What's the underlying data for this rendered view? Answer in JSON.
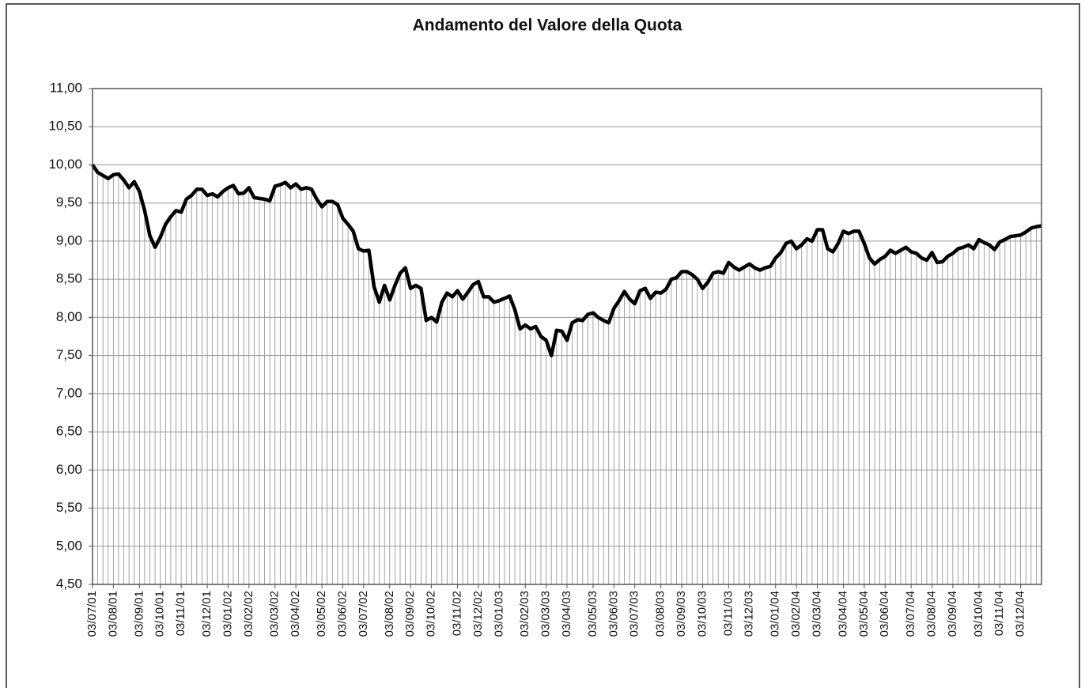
{
  "chart_data": {
    "type": "line",
    "title": "Andamento del Valore della Quota",
    "categories": [
      "03/07/01",
      null,
      null,
      null,
      "03/08/01",
      null,
      null,
      null,
      null,
      "03/09/01",
      null,
      null,
      null,
      "03/10/01",
      null,
      null,
      null,
      "03/11/01",
      null,
      null,
      null,
      null,
      "03/12/01",
      null,
      null,
      null,
      "03/01/02",
      null,
      null,
      null,
      "03/02/02",
      null,
      null,
      null,
      null,
      "03/03/02",
      null,
      null,
      null,
      "03/04/02",
      null,
      null,
      null,
      null,
      "03/05/02",
      null,
      null,
      null,
      "03/06/02",
      null,
      null,
      null,
      "03/07/02",
      null,
      null,
      null,
      null,
      "03/08/02",
      null,
      null,
      null,
      "03/09/02",
      null,
      null,
      null,
      "03/10/02",
      null,
      null,
      null,
      null,
      "03/11/02",
      null,
      null,
      null,
      "03/12/02",
      null,
      null,
      null,
      "03/01/03",
      null,
      null,
      null,
      null,
      "03/02/03",
      null,
      null,
      null,
      "03/03/03",
      null,
      null,
      null,
      "03/04/03",
      null,
      null,
      null,
      null,
      "03/05/03",
      null,
      null,
      null,
      "03/06/03",
      null,
      null,
      null,
      "03/07/03",
      null,
      null,
      null,
      null,
      "03/08/03",
      null,
      null,
      null,
      "03/09/03",
      null,
      null,
      null,
      "03/10/03",
      null,
      null,
      null,
      null,
      "03/11/03",
      null,
      null,
      null,
      "03/12/03",
      null,
      null,
      null,
      null,
      "03/01/04",
      null,
      null,
      null,
      "03/02/04",
      null,
      null,
      null,
      "03/03/04",
      null,
      null,
      null,
      null,
      "03/04/04",
      null,
      null,
      null,
      "03/05/04",
      null,
      null,
      null,
      "03/06/04",
      null,
      null,
      null,
      null,
      "03/07/04",
      null,
      null,
      null,
      "03/08/04",
      null,
      null,
      null,
      "03/09/04",
      null,
      null,
      null,
      null,
      "03/10/04",
      null,
      null,
      null,
      "03/11/04",
      null,
      null,
      null,
      "03/12/04",
      null,
      null,
      null,
      null
    ],
    "series": [
      {
        "color": "#000000",
        "values": [
          10.0,
          9.9,
          9.86,
          9.82,
          9.87,
          9.88,
          9.8,
          9.7,
          9.78,
          9.65,
          9.4,
          9.07,
          8.92,
          9.05,
          9.22,
          9.32,
          9.4,
          9.38,
          9.55,
          9.6,
          9.68,
          9.68,
          9.6,
          9.62,
          9.58,
          9.65,
          9.7,
          9.73,
          9.62,
          9.63,
          9.7,
          9.57,
          9.56,
          9.55,
          9.53,
          9.72,
          9.74,
          9.77,
          9.7,
          9.75,
          9.68,
          9.7,
          9.68,
          9.55,
          9.45,
          9.52,
          9.52,
          9.48,
          9.3,
          9.22,
          9.13,
          8.9,
          8.87,
          8.88,
          8.4,
          8.2,
          8.42,
          8.23,
          8.42,
          8.58,
          8.65,
          8.38,
          8.42,
          8.38,
          7.96,
          8.0,
          7.94,
          8.2,
          8.32,
          8.27,
          8.35,
          8.24,
          8.33,
          8.43,
          8.47,
          8.27,
          8.27,
          8.2,
          8.22,
          8.25,
          8.28,
          8.1,
          7.85,
          7.9,
          7.85,
          7.88,
          7.75,
          7.7,
          7.5,
          7.83,
          7.82,
          7.7,
          7.93,
          7.97,
          7.96,
          8.04,
          8.06,
          8.0,
          7.96,
          7.93,
          8.12,
          8.22,
          8.34,
          8.24,
          8.18,
          8.35,
          8.38,
          8.25,
          8.33,
          8.32,
          8.37,
          8.5,
          8.52,
          8.6,
          8.6,
          8.56,
          8.5,
          8.38,
          8.46,
          8.58,
          8.6,
          8.58,
          8.72,
          8.66,
          8.62,
          8.66,
          8.7,
          8.65,
          8.62,
          8.65,
          8.67,
          8.78,
          8.85,
          8.97,
          9.0,
          8.9,
          8.95,
          9.03,
          9.0,
          9.15,
          9.15,
          8.9,
          8.86,
          8.97,
          9.13,
          9.1,
          9.13,
          9.13,
          8.97,
          8.78,
          8.7,
          8.76,
          8.8,
          8.88,
          8.84,
          8.88,
          8.92,
          8.86,
          8.84,
          8.78,
          8.75,
          8.85,
          8.72,
          8.73,
          8.8,
          8.84,
          8.9,
          8.92,
          8.95,
          8.9,
          9.02,
          8.98,
          8.95,
          8.89,
          8.99,
          9.02,
          9.06,
          9.07,
          9.08,
          9.12,
          9.17,
          9.19,
          9.2
        ]
      }
    ],
    "ylim": [
      4.5,
      11
    ],
    "yticks": [
      {
        "value": 4.5,
        "label": "4,50"
      },
      {
        "value": 5,
        "label": "5,00"
      },
      {
        "value": 5.5,
        "label": "5,50"
      },
      {
        "value": 6,
        "label": "6,00"
      },
      {
        "value": 6.5,
        "label": "6,50"
      },
      {
        "value": 7,
        "label": "7,00"
      },
      {
        "value": 7.5,
        "label": "7,50"
      },
      {
        "value": 8,
        "label": "8,00"
      },
      {
        "value": 8.5,
        "label": "8,50"
      },
      {
        "value": 9,
        "label": "9,00"
      },
      {
        "value": 9.5,
        "label": "9,50"
      },
      {
        "value": 10,
        "label": "10,00"
      },
      {
        "value": 10.5,
        "label": "10,50"
      },
      {
        "value": 11,
        "label": "11,00"
      }
    ],
    "grid": true,
    "drop_lines": true
  }
}
